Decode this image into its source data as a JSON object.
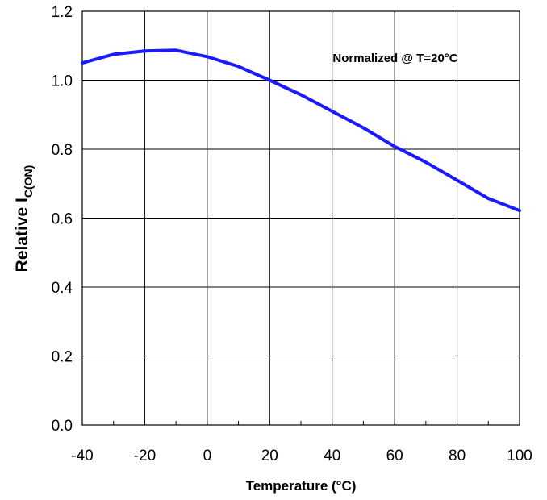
{
  "chart_data": {
    "type": "line",
    "title": "",
    "xlabel": "Temperature (°C)",
    "ylabel": "Relative I",
    "ylabel_subscript": "C(ON)",
    "annotation": "Normalized @ T=20°C",
    "xlim": [
      -40,
      100
    ],
    "ylim": [
      0.0,
      1.2
    ],
    "x_ticks": [
      "-40",
      "-20",
      "0",
      "20",
      "40",
      "60",
      "80",
      "100"
    ],
    "y_ticks": [
      "0.0",
      "0.2",
      "0.4",
      "0.6",
      "0.8",
      "1.0",
      "1.2"
    ],
    "grid": true,
    "series": [
      {
        "color": "#1a1aff",
        "x": [
          -40,
          -30,
          -20,
          -10,
          0,
          10,
          20,
          30,
          40,
          50,
          60,
          70,
          80,
          90,
          100
        ],
        "y": [
          1.05,
          1.075,
          1.085,
          1.087,
          1.068,
          1.04,
          1.0,
          0.958,
          0.91,
          0.862,
          0.808,
          0.762,
          0.71,
          0.657,
          0.622
        ]
      }
    ]
  }
}
